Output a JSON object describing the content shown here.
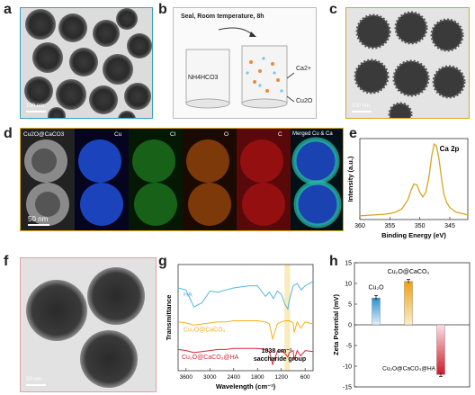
{
  "panels": {
    "a": {
      "label": "a",
      "scale": "100 nm"
    },
    "b": {
      "label": "b",
      "title": "Seal, Room temperature, 8h",
      "beaker_left": "NH4HCO3",
      "ca_label": "Ca2+",
      "cu2o_label": "Cu2O"
    },
    "c": {
      "label": "c",
      "scale": "100 nm"
    },
    "d": {
      "label": "d",
      "channels": [
        "Cu2O@CaCO3",
        "Cu",
        "Cl",
        "O",
        "C",
        "Merged Cu & Ca"
      ],
      "scale": "50 nm"
    },
    "e": {
      "label": "e",
      "peak_label": "Ca 2p"
    },
    "f": {
      "label": "f",
      "scale": "50 nm"
    },
    "g": {
      "label": "g",
      "annotation1": "1038 cm⁻¹",
      "annotation2": "saccharide group"
    },
    "h": {
      "label": "h"
    }
  },
  "colors": {
    "teal": "#3a9fc4",
    "gold": "#d9a521",
    "pink": "#e0a0a8",
    "ha": "#55b6e0",
    "cu2o_caco3": "#f0b21e",
    "ha_coat": "#d42838",
    "cu_map": "#2050d8",
    "cl_map": "#28a02a",
    "o_map": "#d06010",
    "c_map": "#d01818"
  },
  "chart_data": [
    {
      "type": "line",
      "panel": "e",
      "xlabel": "Binding Energy (eV)",
      "ylabel": "Intensity (a.u.)",
      "xlim": [
        342,
        360
      ],
      "xticks": [
        345,
        350,
        355,
        360
      ],
      "reversed_x": true,
      "series": [
        {
          "x": [
            360,
            358,
            356,
            355,
            354,
            353,
            352,
            351.5,
            351,
            350.5,
            350,
            349.5,
            349,
            348.5,
            348,
            347.6,
            347.2,
            346.8,
            346.4,
            346,
            345.5,
            345,
            344,
            343,
            342
          ],
          "y": [
            0.05,
            0.06,
            0.07,
            0.08,
            0.1,
            0.14,
            0.26,
            0.38,
            0.47,
            0.46,
            0.36,
            0.3,
            0.36,
            0.55,
            0.85,
            1.0,
            0.97,
            0.8,
            0.55,
            0.34,
            0.22,
            0.16,
            0.1,
            0.08,
            0.06
          ]
        }
      ]
    },
    {
      "type": "line",
      "panel": "g",
      "xlabel": "Wavelength (cm⁻¹)",
      "ylabel": "Transmittance",
      "xlim": [
        3800,
        400
      ],
      "xticks": [
        3600,
        3000,
        2400,
        1800,
        1200,
        600
      ],
      "series": [
        {
          "name": "HA",
          "x": [
            3800,
            3600,
            3400,
            3200,
            3000,
            2800,
            2600,
            2400,
            2200,
            2000,
            1800,
            1600,
            1500,
            1400,
            1300,
            1200,
            1100,
            1038,
            1000,
            900,
            800,
            700,
            600,
            500,
            400
          ],
          "y": [
            0.78,
            0.76,
            0.6,
            0.64,
            0.75,
            0.74,
            0.76,
            0.78,
            0.79,
            0.8,
            0.8,
            0.7,
            0.74,
            0.68,
            0.75,
            0.72,
            0.62,
            0.58,
            0.66,
            0.8,
            0.82,
            0.76,
            0.8,
            0.82,
            0.84
          ]
        },
        {
          "name": "Cu₂O@CaCO₃",
          "x": [
            3800,
            3600,
            3400,
            3200,
            3000,
            2800,
            2600,
            2400,
            2200,
            2000,
            1800,
            1600,
            1500,
            1420,
            1300,
            1200,
            1100,
            1000,
            900,
            875,
            800,
            712,
            600,
            500,
            400
          ],
          "y": [
            0.46,
            0.45,
            0.43,
            0.44,
            0.45,
            0.46,
            0.46,
            0.47,
            0.47,
            0.47,
            0.47,
            0.46,
            0.44,
            0.3,
            0.44,
            0.46,
            0.47,
            0.47,
            0.45,
            0.36,
            0.46,
            0.4,
            0.46,
            0.45,
            0.44
          ]
        },
        {
          "name": "Cu₂O@CaCO₃@HA",
          "x": [
            3800,
            3600,
            3400,
            3200,
            3000,
            2800,
            2600,
            2400,
            2200,
            2000,
            1800,
            1600,
            1500,
            1420,
            1300,
            1200,
            1100,
            1038,
            1000,
            900,
            875,
            800,
            712,
            600,
            400
          ],
          "y": [
            0.2,
            0.19,
            0.17,
            0.18,
            0.19,
            0.2,
            0.2,
            0.21,
            0.21,
            0.21,
            0.21,
            0.2,
            0.18,
            0.06,
            0.18,
            0.19,
            0.16,
            0.13,
            0.17,
            0.19,
            0.1,
            0.19,
            0.14,
            0.19,
            0.18
          ]
        }
      ]
    },
    {
      "type": "bar",
      "panel": "h",
      "ylabel": "Zeta Potential (mV)",
      "ylim": [
        -15,
        15
      ],
      "yticks": [
        -15,
        -10,
        -5,
        0,
        5,
        10,
        15
      ],
      "categories": [
        "Cu₂O",
        "Cu₂O@CaCO₃",
        "Cu₂O@CaCO₃@HA"
      ],
      "values": [
        6.5,
        10.5,
        -12
      ],
      "errors": [
        0.6,
        0.5,
        0.5
      ]
    }
  ]
}
